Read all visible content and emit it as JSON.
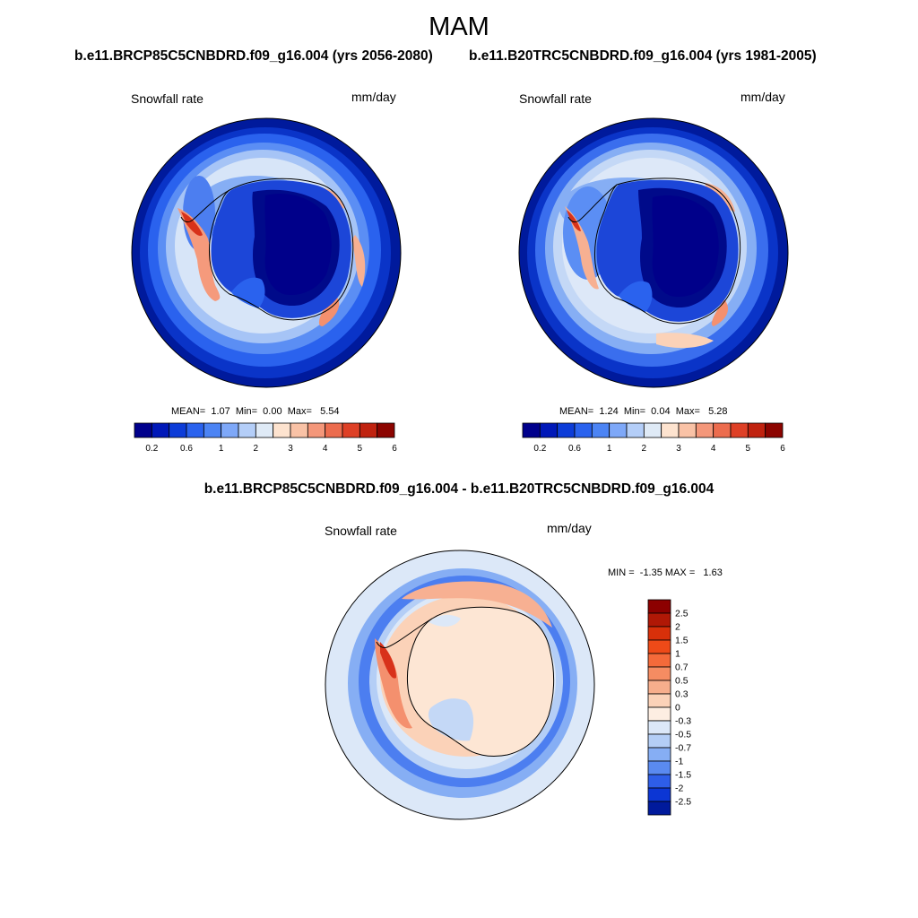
{
  "figure": {
    "title": "MAM",
    "diff_title": "b.e11.BRCP85C5CNBDRD.f09_g16.004 - b.e11.B20TRC5CNBDRD.f09_g16.004"
  },
  "chart_data": [
    {
      "type": "heatmap",
      "projection": "south-polar-stereographic",
      "title": "b.e11.BRCP85C5CNBDRD.f09_g16.004 (yrs 2056-2080)",
      "left_label": "Snowfall rate",
      "right_label": "mm/day",
      "stats": {
        "mean": "1.07",
        "min": "0.00",
        "max": "5.54"
      },
      "stats_labels": {
        "mean": "MEAN=",
        "min": "Min=",
        "max": "Max="
      },
      "colorbar": {
        "orientation": "horizontal",
        "tick_labels": [
          "0.2",
          "0.6",
          "1",
          "2",
          "3",
          "4",
          "5",
          "6"
        ],
        "colors": [
          "#00008c",
          "#0018b8",
          "#0c3cd8",
          "#2a62ee",
          "#4c84f4",
          "#7ea8f8",
          "#b4cef8",
          "#dfeaf6",
          "#fde3cf",
          "#f9c2a6",
          "#f4977a",
          "#ec6c4e",
          "#de4026",
          "#c0220f",
          "#8c0400"
        ]
      }
    },
    {
      "type": "heatmap",
      "projection": "south-polar-stereographic",
      "title": "b.e11.B20TRC5CNBDRD.f09_g16.004 (yrs 1981-2005)",
      "left_label": "Snowfall rate",
      "right_label": "mm/day",
      "stats": {
        "mean": "1.24",
        "min": "0.04",
        "max": "5.28"
      },
      "stats_labels": {
        "mean": "MEAN=",
        "min": "Min=",
        "max": "Max="
      },
      "colorbar": {
        "orientation": "horizontal",
        "tick_labels": [
          "0.2",
          "0.6",
          "1",
          "2",
          "3",
          "4",
          "5",
          "6"
        ],
        "colors": [
          "#00008c",
          "#0018b8",
          "#0c3cd8",
          "#2a62ee",
          "#4c84f4",
          "#7ea8f8",
          "#b4cef8",
          "#dfeaf6",
          "#fde3cf",
          "#f9c2a6",
          "#f4977a",
          "#ec6c4e",
          "#de4026",
          "#c0220f",
          "#8c0400"
        ]
      }
    },
    {
      "type": "heatmap",
      "projection": "south-polar-stereographic",
      "title": "b.e11.BRCP85C5CNBDRD.f09_g16.004 - b.e11.B20TRC5CNBDRD.f09_g16.004",
      "left_label": "Snowfall rate",
      "right_label": "mm/day",
      "stats": {
        "min": "-1.35",
        "max": "1.63"
      },
      "stats_labels": {
        "min": "MIN =",
        "max": "MAX ="
      },
      "colorbar": {
        "orientation": "vertical",
        "tick_labels": [
          "2.5",
          "2",
          "1.5",
          "1",
          "0.7",
          "0.5",
          "0.3",
          "0",
          "-0.3",
          "-0.5",
          "-0.7",
          "-1",
          "-1.5",
          "-2",
          "-2.5"
        ],
        "colors": [
          "#8c0000",
          "#b01806",
          "#d8300a",
          "#ee4a18",
          "#f46a3a",
          "#f58c62",
          "#f7ae8c",
          "#fbd2b8",
          "#fdeee2",
          "#dce8f8",
          "#b4cef6",
          "#86aef4",
          "#5a8af0",
          "#2e5ee8",
          "#0c36d4",
          "#001a9c"
        ]
      }
    }
  ],
  "colors": {
    "deep_blue": "#000a8a",
    "mid_blue": "#2352e6",
    "light_blue": "#9dbef6",
    "pale_blue": "#d6e4f8",
    "pale_orange": "#fde6d4",
    "orange": "#f4906e",
    "red": "#d8321a"
  }
}
